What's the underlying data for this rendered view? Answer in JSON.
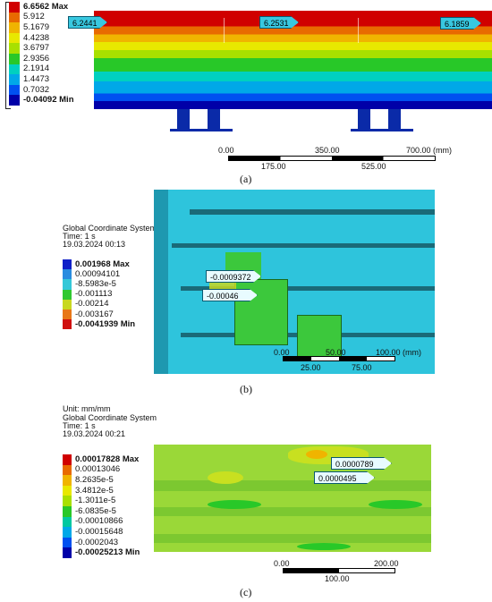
{
  "panel_a": {
    "legend": [
      "6.6562 Max",
      "5.912",
      "5.1679",
      "4.4238",
      "3.6797",
      "2.9356",
      "2.1914",
      "1.4473",
      "0.7032",
      "-0.04092 Min"
    ],
    "legend_colors": [
      "#d00000",
      "#e86a00",
      "#f0b400",
      "#e8e800",
      "#a8e000",
      "#28c828",
      "#00d0c0",
      "#00a8e8",
      "#0050f0",
      "#0000a8"
    ],
    "probes": [
      "6.2441",
      "6.2531",
      "6.1859"
    ],
    "scale_top": [
      "0.00",
      "350.00",
      "700.00 (mm)"
    ],
    "scale_bottom": [
      "175.00",
      "525.00"
    ],
    "caption": "(a)"
  },
  "panel_b": {
    "header": [
      "Global Coordinate System",
      "Time: 1 s",
      "19.03.2024 00:13"
    ],
    "legend": [
      "0.001968 Max",
      "0.00094101",
      "-8.5983e-5",
      "-0.001113",
      "-0.00214",
      "-0.003167",
      "-0.0041939 Min"
    ],
    "legend_colors": [
      "#1020c8",
      "#2a8ce0",
      "#34c8d8",
      "#30c830",
      "#c8d820",
      "#e87818",
      "#d01010"
    ],
    "probes": [
      "-0.0009372",
      "-0.00046"
    ],
    "scale_top": [
      "0.00",
      "50.00",
      "100.00 (mm)"
    ],
    "scale_bottom": [
      "25.00",
      "75.00"
    ],
    "caption": "(b)"
  },
  "panel_c": {
    "header": [
      "Unit: mm/mm",
      "Global Coordinate System",
      "Time: 1 s",
      "19.03.2024 00:21"
    ],
    "legend": [
      "0.00017828 Max",
      "0.00013046",
      "8.2635e-5",
      "3.4812e-5",
      "-1.3011e-5",
      "-6.0835e-5",
      "-0.00010866",
      "-0.00015648",
      "-0.0002043",
      "-0.00025213 Min"
    ],
    "legend_colors": [
      "#d00000",
      "#e86a00",
      "#f0b400",
      "#e8e800",
      "#a8e000",
      "#28c828",
      "#00c8a0",
      "#00a8e8",
      "#0050f0",
      "#0000a8"
    ],
    "probes": [
      "0.0000789",
      "0.0000495"
    ],
    "scale_top": [
      "0.00",
      "200.00"
    ],
    "scale_bottom": [
      "100.00"
    ],
    "caption": "(c)"
  }
}
